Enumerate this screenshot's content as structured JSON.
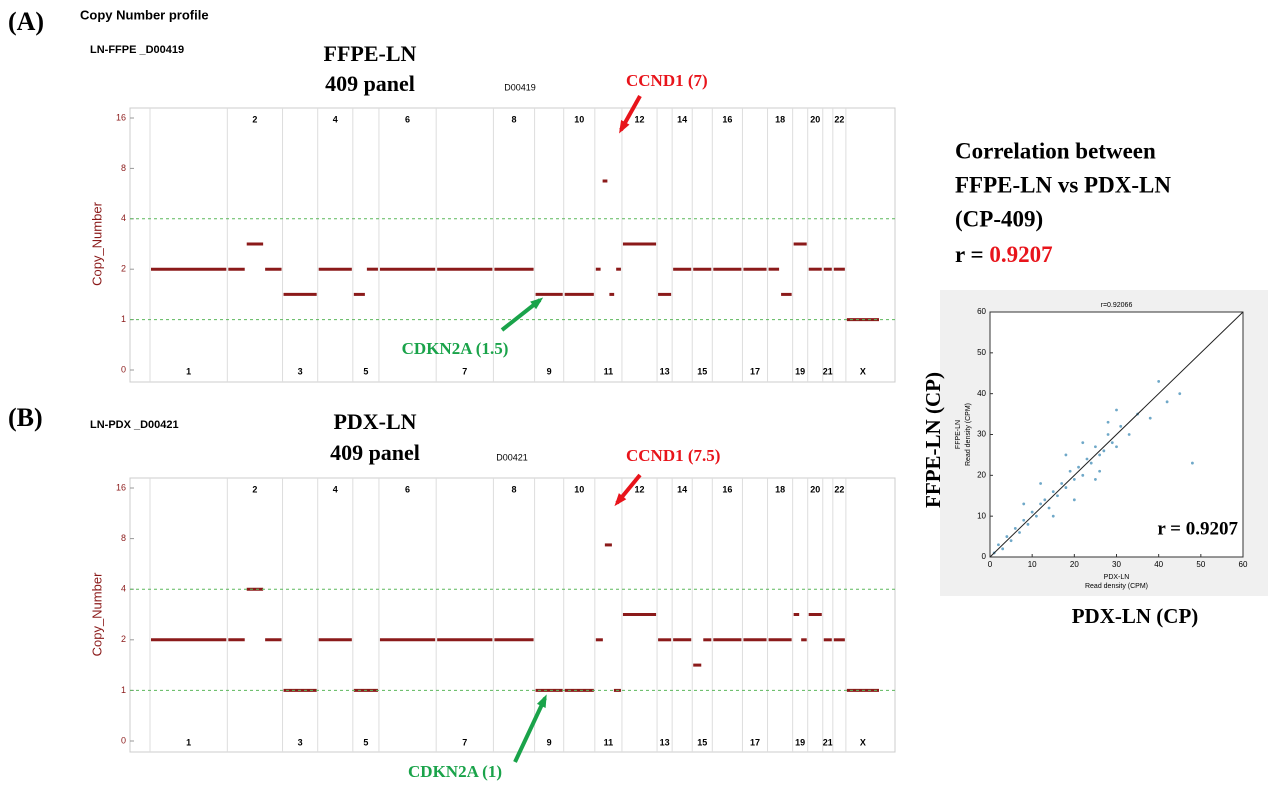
{
  "figure_title": "Copy Number profile",
  "chart_data": [
    {
      "type": "segments",
      "panel": "(A)",
      "sample": "LN-FFPE _D00419",
      "title": "FFPE-LN",
      "subtitle": "409 panel",
      "code": "D00419",
      "y_label": "Copy_Number",
      "ylim": [
        0,
        16
      ],
      "yticks": [
        0,
        1,
        2,
        4,
        8,
        16
      ],
      "reference_lines": [
        1,
        4
      ],
      "grid": true,
      "segment_color": "#8b1a1a",
      "chromosomes": [
        "1",
        "2",
        "3",
        "4",
        "5",
        "6",
        "7",
        "8",
        "9",
        "10",
        "11",
        "12",
        "13",
        "14",
        "15",
        "16",
        "17",
        "18",
        "19",
        "20",
        "21",
        "22",
        "X"
      ],
      "segments": [
        [
          2
        ],
        [
          2,
          3,
          2
        ],
        [
          1.5
        ],
        [
          2
        ],
        [
          1.5,
          2
        ],
        [
          2
        ],
        [
          2
        ],
        [
          2
        ],
        [
          1.5
        ],
        [
          1.5
        ],
        [
          2,
          7,
          1.5,
          2
        ],
        [
          3
        ],
        [
          1.5
        ],
        [
          2
        ],
        [
          2
        ],
        [
          2
        ],
        [
          2
        ],
        [
          2,
          1.5
        ],
        [
          3
        ],
        [
          2
        ],
        [
          2
        ],
        [
          2
        ],
        [
          1
        ]
      ],
      "annotations": [
        {
          "text": "CCND1 (7)",
          "color": "#e8141b"
        },
        {
          "text": "CDKN2A (1.5)",
          "color": "#1aa34a"
        }
      ]
    },
    {
      "type": "segments",
      "panel": "(B)",
      "sample": "LN-PDX _D00421",
      "title": "PDX-LN",
      "subtitle": "409 panel",
      "code": "D00421",
      "y_label": "Copy_Number",
      "ylim": [
        0,
        16
      ],
      "yticks": [
        0,
        1,
        2,
        4,
        8,
        16
      ],
      "reference_lines": [
        1,
        4
      ],
      "grid": true,
      "segment_color": "#8b1a1a",
      "chromosomes": [
        "1",
        "2",
        "3",
        "4",
        "5",
        "6",
        "7",
        "8",
        "9",
        "10",
        "11",
        "12",
        "13",
        "14",
        "15",
        "16",
        "17",
        "18",
        "19",
        "20",
        "21",
        "22",
        "X"
      ],
      "segments": [
        [
          2
        ],
        [
          2,
          4,
          2
        ],
        [
          1
        ],
        [
          2
        ],
        [
          1
        ],
        [
          2
        ],
        [
          2
        ],
        [
          2
        ],
        [
          1
        ],
        [
          1
        ],
        [
          2,
          7.5,
          1
        ],
        [
          3
        ],
        [
          2
        ],
        [
          2
        ],
        [
          1.5,
          2
        ],
        [
          2
        ],
        [
          2
        ],
        [
          2
        ],
        [
          3,
          2
        ],
        [
          3
        ],
        [
          2
        ],
        [
          2
        ],
        [
          1
        ]
      ],
      "annotations": [
        {
          "text": "CCND1 (7.5)",
          "color": "#e8141b"
        },
        {
          "text": "CDKN2A (1)",
          "color": "#1aa34a"
        }
      ]
    },
    {
      "type": "scatter",
      "title": "r=0.92066",
      "x_label": "PDX-LN",
      "x_unit": "Read density (CPM)",
      "y_label": "FFPE-LN",
      "y_unit": "Read density (CPM)",
      "xlim": [
        0,
        60
      ],
      "ylim": [
        0,
        60
      ],
      "xticks": [
        0,
        10,
        20,
        30,
        40,
        50,
        60
      ],
      "yticks": [
        0,
        10,
        20,
        30,
        40,
        50,
        60
      ],
      "diagonal": true,
      "color": "#6fa8c8",
      "x": [
        1,
        2,
        3,
        4,
        5,
        6,
        7,
        8,
        9,
        10,
        11,
        12,
        13,
        14,
        15,
        16,
        17,
        18,
        19,
        20,
        21,
        22,
        23,
        24,
        25,
        26,
        27,
        28,
        29,
        30,
        31,
        33,
        35,
        38,
        40,
        42,
        45,
        48,
        12,
        18,
        22,
        26,
        30,
        15,
        20,
        25,
        8,
        28
      ],
      "y": [
        1,
        3,
        2,
        5,
        4,
        7,
        6,
        9,
        8,
        11,
        10,
        13,
        14,
        12,
        16,
        15,
        18,
        17,
        21,
        19,
        22,
        20,
        24,
        23,
        27,
        25,
        26,
        30,
        28,
        27,
        32,
        30,
        35,
        34,
        43,
        38,
        40,
        23,
        18,
        25,
        28,
        21,
        36,
        10,
        14,
        19,
        13,
        33
      ],
      "annotation": "r = 0.9207"
    }
  ],
  "correlation": {
    "heading": [
      "Correlation  between",
      "FFPE-LN vs PDX-LN",
      "(CP-409)"
    ],
    "r_prefix": "r =",
    "r_value": 0.9207,
    "y_title": "FFPE-LN (CP)",
    "x_title": "PDX-LN (CP)"
  }
}
